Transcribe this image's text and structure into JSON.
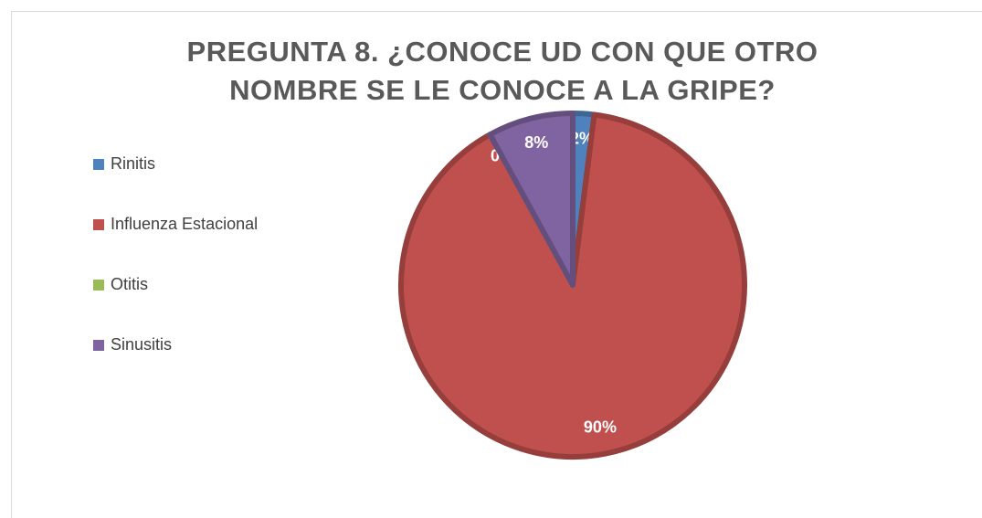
{
  "chart_data": {
    "type": "pie",
    "title": "PREGUNTA 8. ¿CONOCE UD CON QUE OTRO NOMBRE SE LE CONOCE A LA GRIPE?",
    "categories": [
      "Rinitis",
      "Influenza Estacional",
      "Otitis",
      "Sinusitis"
    ],
    "values": [
      2,
      90,
      0,
      8
    ],
    "value_labels": [
      "2%",
      "90%",
      "0%",
      "8%"
    ],
    "colors": [
      "#4f81bd",
      "#c0504d",
      "#9bbb59",
      "#8064a2"
    ],
    "legend": "left"
  }
}
